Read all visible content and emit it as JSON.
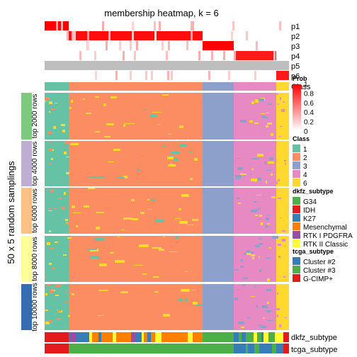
{
  "chart_data": {
    "type": "heatmap",
    "title": "membership heatmap, k = 6",
    "ylabel": "50 x 5 random samplings",
    "membership_rows": [
      "p1",
      "p2",
      "p3",
      "p4",
      "p5",
      "p6"
    ],
    "membership_blocks": [
      {
        "class": "1",
        "row": "p1",
        "value": 1.0
      },
      {
        "class": "2",
        "row": "p2",
        "value": 1.0
      },
      {
        "class": "3",
        "row": "p3",
        "value": 1.0
      },
      {
        "class": "4",
        "row": "p4",
        "value": 0.9
      },
      {
        "class": "6",
        "row": "p6",
        "value": 0.9
      }
    ],
    "class_row_label": "Class",
    "row_groups": [
      "top 2000 rows",
      "top 4000 rows",
      "top 6000 rows",
      "top 8000 rows",
      "top 10000 rows"
    ],
    "row_group_colors": [
      "#7fc97f",
      "#beaed4",
      "#fdc086",
      "#ffff99",
      "#386cb0"
    ],
    "annotation_rows": [
      "dkfz_subtype",
      "tcga_subtype"
    ],
    "legends": {
      "prob": {
        "title": "Prob",
        "ticks": [
          "1",
          "0.8",
          "0.6",
          "0.4",
          "0.2",
          "0"
        ],
        "colors": [
          "#ff0000",
          "#ffffff"
        ]
      },
      "class": {
        "title": "Class",
        "items": [
          {
            "label": "1",
            "color": "#66c2a5"
          },
          {
            "label": "2",
            "color": "#fc8d62"
          },
          {
            "label": "3",
            "color": "#8da0cb"
          },
          {
            "label": "4",
            "color": "#e78ac3"
          },
          {
            "label": "6",
            "color": "#ffd92f"
          }
        ]
      },
      "dkfz": {
        "title": "dkfz_subtype",
        "items": [
          {
            "label": "G34",
            "color": "#4daf4a"
          },
          {
            "label": "IDH",
            "color": "#e41a1c"
          },
          {
            "label": "K27",
            "color": "#377eb8"
          },
          {
            "label": "Mesenchymal",
            "color": "#ff7f00"
          },
          {
            "label": "RTK I PDGFRA",
            "color": "#984ea3"
          },
          {
            "label": "RTK II Classic",
            "color": "#ffff33"
          }
        ]
      },
      "tcga": {
        "title": "tcga_subtype",
        "items": [
          {
            "label": "Cluster #2",
            "color": "#377eb8"
          },
          {
            "label": "Cluster #3",
            "color": "#4daf4a"
          },
          {
            "label": "G-CIMP+",
            "color": "#e41a1c"
          }
        ]
      }
    },
    "class_colors": {
      "1": "#66c2a5",
      "2": "#fc8d62",
      "3": "#8da0cb",
      "4": "#e78ac3",
      "6": "#ffd92f"
    }
  }
}
